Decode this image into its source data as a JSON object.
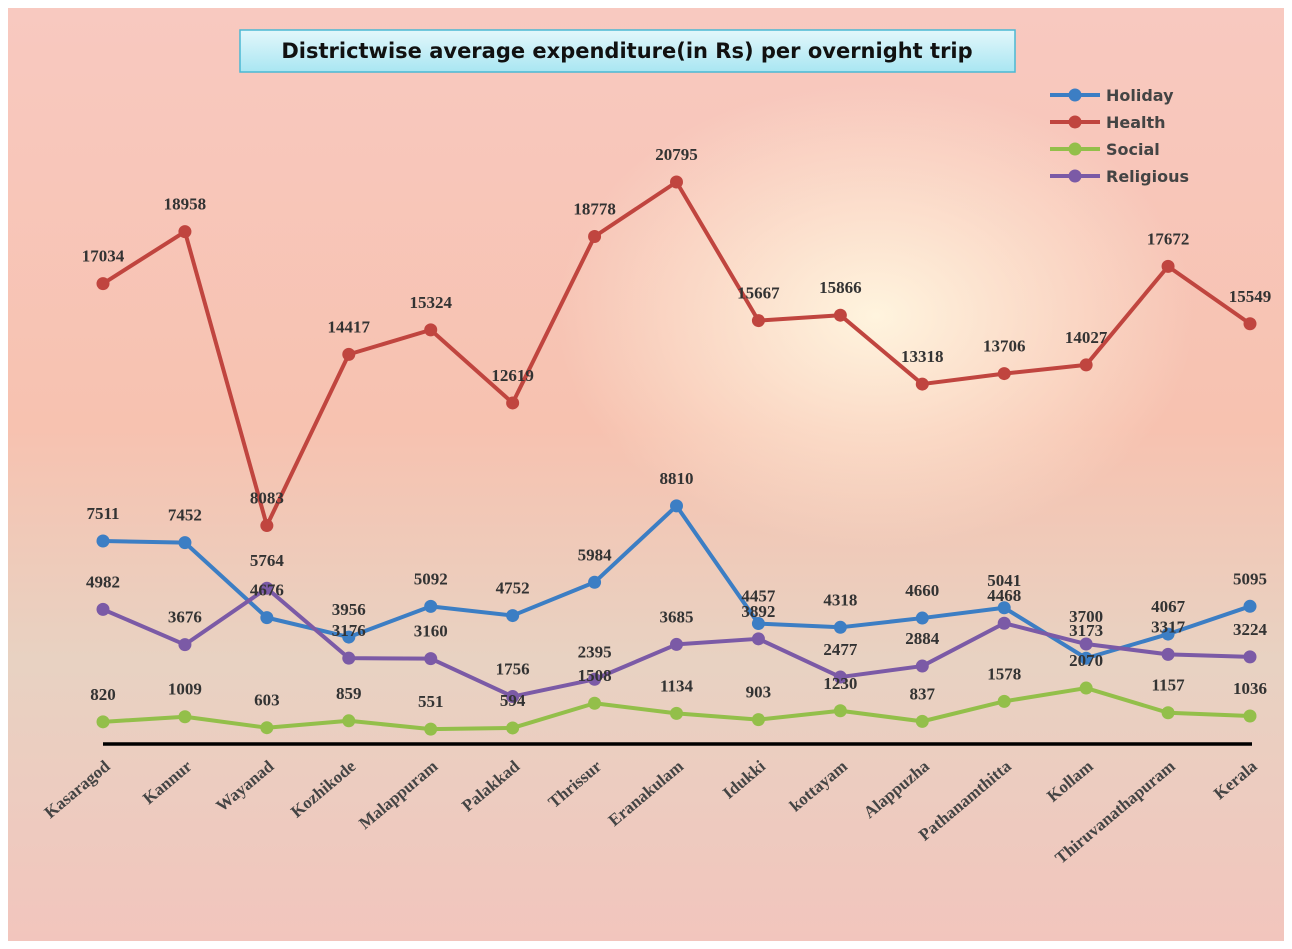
{
  "chart_data": {
    "type": "line",
    "title": "Districtwise average expenditure(in Rs) per overnight trip",
    "categories": [
      "Kasaragod",
      "Kannur",
      "Wayanad",
      "Kozhikode",
      "Malappuram",
      "Palakkad",
      "Thrissur",
      "Eranakulam",
      "Idukki",
      "kottayam",
      "Alappuzha",
      "Pathanamthitta",
      "Kollam",
      "Thiruvanathapuram",
      "Kerala"
    ],
    "series": [
      {
        "name": "Holiday",
        "color": "#3c7ec4",
        "values": [
          7511,
          7452,
          4676,
          3956,
          5092,
          4752,
          5984,
          8810,
          4457,
          4318,
          4660,
          5041,
          3173,
          4067,
          5095
        ]
      },
      {
        "name": "Health",
        "color": "#c0453f",
        "values": [
          17034,
          18958,
          8083,
          14417,
          15324,
          12619,
          18778,
          20795,
          15667,
          15866,
          13318,
          13706,
          14027,
          17672,
          15549
        ]
      },
      {
        "name": "Social",
        "color": "#93bf4a",
        "values": [
          820,
          1009,
          603,
          859,
          551,
          594,
          1508,
          1134,
          903,
          1230,
          837,
          1578,
          2070,
          1157,
          1036
        ]
      },
      {
        "name": "Religious",
        "color": "#7b5aa6",
        "values": [
          4982,
          3676,
          5764,
          3176,
          3160,
          1756,
          2395,
          3685,
          3892,
          2477,
          2884,
          4468,
          3700,
          3317,
          3224
        ]
      }
    ],
    "legend": "top-right"
  }
}
